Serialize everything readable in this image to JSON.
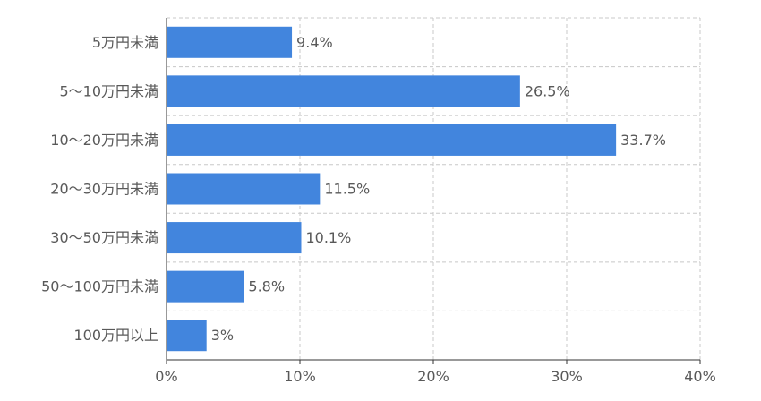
{
  "chart_data": {
    "type": "bar",
    "orientation": "horizontal",
    "categories": [
      "5万円未満",
      "5〜10万円未満",
      "10〜20万円未満",
      "20〜30万円未満",
      "30〜50万円未満",
      "50〜100万円未満",
      "100万円以上"
    ],
    "values": [
      9.4,
      26.5,
      33.7,
      11.5,
      10.1,
      5.8,
      3
    ],
    "value_labels": [
      "9.4%",
      "26.5%",
      "33.7%",
      "11.5%",
      "10.1%",
      "5.8%",
      "3%"
    ],
    "xlim": [
      0,
      40
    ],
    "x_ticks": [
      0,
      10,
      20,
      30,
      40
    ],
    "x_tick_labels": [
      "0%",
      "10%",
      "20%",
      "30%",
      "40%"
    ],
    "title": "",
    "xlabel": "",
    "ylabel": "",
    "grid": true,
    "legend": "none",
    "colors": {
      "bar": "#4285dd",
      "text": "#595959",
      "grid": "#c8c8c8",
      "axis": "#333333"
    }
  }
}
